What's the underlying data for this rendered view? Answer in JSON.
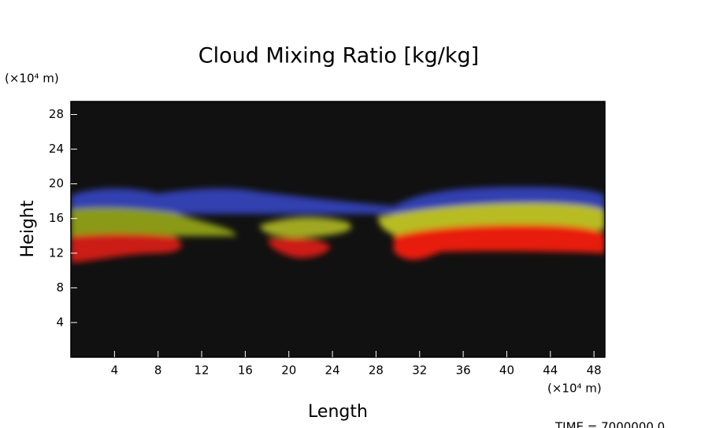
{
  "chart_data": {
    "type": "field",
    "title": "Cloud Mixing Ratio [kg/kg]",
    "x_label": "Length",
    "y_label": "Height",
    "x_unit": "(×10⁴ m)",
    "y_unit": "(×10⁴ m)",
    "time_label": "TIME = 7000000.0",
    "xlim": [
      0,
      49
    ],
    "ylim": [
      0,
      29.5
    ],
    "xticks": [
      4,
      8,
      12,
      16,
      20,
      24,
      28,
      32,
      36,
      40,
      44,
      48
    ],
    "yticks": [
      4,
      8,
      12,
      16,
      20,
      24,
      28
    ]
  }
}
